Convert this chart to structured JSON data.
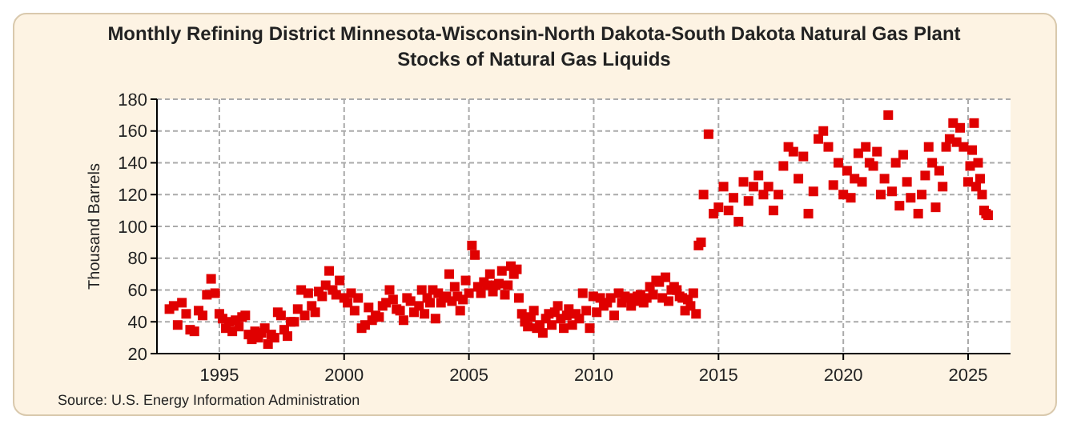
{
  "chart_data": {
    "type": "scatter",
    "title": "Monthly Refining District Minnesota-Wisconsin-North Dakota-South Dakota Natural Gas Plant Stocks of Natural Gas Liquids",
    "ylabel": "Thousand Barrels",
    "annotations": [
      "Source: U.S. Energy Information Administration"
    ],
    "marker": "square",
    "grid": true,
    "xlim": [
      1992.5,
      2026.7
    ],
    "xticks": [
      1995,
      2000,
      2005,
      2010,
      2015,
      2020,
      2025
    ],
    "ylim": [
      20,
      180
    ],
    "yticks": [
      20,
      40,
      60,
      80,
      100,
      120,
      140,
      160,
      180
    ],
    "series": [
      {
        "color": "#e00000",
        "x": [
          1993.0,
          1993.17,
          1993.33,
          1993.5,
          1993.67,
          1993.83,
          1994.0,
          1994.17,
          1994.33,
          1994.5,
          1994.67,
          1994.83,
          1995.0,
          1995.13,
          1995.26,
          1995.39,
          1995.52,
          1995.65,
          1995.78,
          1995.91,
          1996.04,
          1996.17,
          1996.3,
          1996.43,
          1996.56,
          1996.69,
          1996.82,
          1996.95,
          1997.08,
          1997.21,
          1997.34,
          1997.47,
          1997.6,
          1997.73,
          1997.86,
          1998.0,
          1998.14,
          1998.28,
          1998.42,
          1998.56,
          1998.7,
          1998.84,
          1998.98,
          1999.12,
          1999.26,
          1999.4,
          1999.54,
          1999.68,
          1999.82,
          2000.0,
          2000.14,
          2000.28,
          2000.42,
          2000.56,
          2000.7,
          2000.84,
          2000.98,
          2001.12,
          2001.26,
          2001.4,
          2001.54,
          2001.68,
          2001.82,
          2001.96,
          2002.1,
          2002.24,
          2002.38,
          2002.52,
          2002.66,
          2002.8,
          2003.0,
          2003.11,
          2003.22,
          2003.33,
          2003.44,
          2003.55,
          2003.66,
          2003.77,
          2003.88,
          2003.99,
          2004.1,
          2004.21,
          2004.32,
          2004.43,
          2004.54,
          2004.65,
          2004.76,
          2004.87,
          2005.0,
          2005.12,
          2005.24,
          2005.36,
          2005.48,
          2005.6,
          2005.72,
          2005.84,
          2005.96,
          2006.08,
          2006.2,
          2006.32,
          2006.44,
          2006.56,
          2006.68,
          2006.8,
          2006.92,
          2007.0,
          2007.12,
          2007.24,
          2007.36,
          2007.48,
          2007.6,
          2007.72,
          2007.84,
          2007.96,
          2008.08,
          2008.2,
          2008.32,
          2008.44,
          2008.56,
          2008.68,
          2008.8,
          2008.92,
          2009.0,
          2009.14,
          2009.28,
          2009.42,
          2009.56,
          2009.7,
          2009.84,
          2009.98,
          2010.12,
          2010.26,
          2010.4,
          2010.54,
          2010.68,
          2010.82,
          2011.0,
          2011.125,
          2011.25,
          2011.375,
          2011.5,
          2011.625,
          2011.75,
          2011.875,
          2012.0,
          2012.125,
          2012.25,
          2012.375,
          2012.5,
          2012.625,
          2012.75,
          2012.875,
          2013.0,
          2013.11,
          2013.22,
          2013.33,
          2013.44,
          2013.55,
          2013.66,
          2013.77,
          2013.88,
          2013.99,
          2014.1,
          2014.2,
          2014.3,
          2014.4,
          2014.6,
          2014.8,
          2015.0,
          2015.2,
          2015.4,
          2015.6,
          2015.8,
          2016.0,
          2016.2,
          2016.4,
          2016.6,
          2016.8,
          2017.0,
          2017.2,
          2017.4,
          2017.6,
          2017.8,
          2018.0,
          2018.2,
          2018.4,
          2018.6,
          2018.8,
          2019.0,
          2019.2,
          2019.4,
          2019.6,
          2019.8,
          2020.0,
          2020.15,
          2020.3,
          2020.45,
          2020.6,
          2020.75,
          2020.9,
          2021.05,
          2021.2,
          2021.35,
          2021.5,
          2021.65,
          2021.8,
          2021.95,
          2022.1,
          2022.25,
          2022.4,
          2022.55,
          2022.7,
          2023.0,
          2023.14,
          2023.28,
          2023.42,
          2023.56,
          2023.7,
          2023.84,
          2023.98,
          2024.12,
          2024.26,
          2024.4,
          2024.54,
          2024.68,
          2024.82,
          2025.0,
          2025.08,
          2025.16,
          2025.24,
          2025.32,
          2025.4,
          2025.48,
          2025.56,
          2025.64,
          2025.72,
          2025.8
        ],
        "values": [
          48,
          50,
          38,
          52,
          45,
          35,
          34,
          47,
          44,
          57,
          67,
          58,
          45,
          42,
          36,
          40,
          34,
          41,
          37,
          43,
          44,
          32,
          29,
          34,
          30,
          33,
          36,
          26,
          32,
          30,
          46,
          44,
          35,
          31,
          40,
          40,
          48,
          60,
          44,
          58,
          50,
          46,
          59,
          56,
          63,
          72,
          60,
          57,
          66,
          55,
          52,
          58,
          47,
          55,
          36,
          38,
          49,
          41,
          44,
          43,
          50,
          52,
          60,
          54,
          48,
          47,
          41,
          55,
          53,
          46,
          50,
          60,
          45,
          55,
          52,
          60,
          42,
          58,
          52,
          55,
          56,
          70,
          53,
          62,
          56,
          47,
          54,
          66,
          58,
          88,
          82,
          62,
          58,
          65,
          63,
          70,
          59,
          63,
          64,
          72,
          57,
          63,
          75,
          70,
          73,
          55,
          45,
          40,
          37,
          43,
          47,
          36,
          38,
          33,
          42,
          45,
          38,
          46,
          50,
          42,
          36,
          44,
          48,
          38,
          45,
          42,
          58,
          47,
          36,
          56,
          46,
          55,
          50,
          52,
          55,
          44,
          58,
          52,
          56,
          55,
          50,
          53,
          56,
          57,
          52,
          55,
          62,
          57,
          66,
          65,
          55,
          68,
          53,
          60,
          62,
          60,
          56,
          55,
          47,
          54,
          50,
          58,
          45,
          88,
          90,
          120,
          158,
          108,
          112,
          125,
          110,
          118,
          103,
          128,
          116,
          125,
          132,
          120,
          125,
          110,
          120,
          138,
          150,
          147,
          130,
          144,
          108,
          122,
          155,
          160,
          150,
          126,
          140,
          120,
          135,
          118,
          130,
          146,
          128,
          150,
          140,
          138,
          147,
          120,
          130,
          170,
          122,
          140,
          113,
          145,
          128,
          118,
          108,
          120,
          132,
          150,
          140,
          112,
          135,
          125,
          150,
          155,
          165,
          153,
          162,
          150,
          128,
          138,
          148,
          165,
          125,
          140,
          130,
          120,
          110,
          108,
          107
        ]
      }
    ]
  }
}
